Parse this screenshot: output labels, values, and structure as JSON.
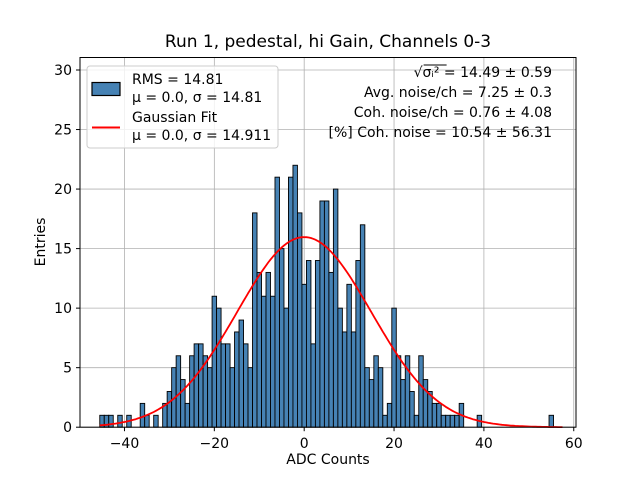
{
  "title": "Run 1, pedestal, hi Gain, Channels 0-3",
  "annotations": [
    "√σᵢ² = 14.49 ± 0.59",
    "Avg. noise/ch = 7.25 ± 0.3",
    "Coh. noise/ch = 0.76 ± 4.08",
    "[%] Coh. noise = 10.54 ± 56.31"
  ],
  "legend": {
    "entries": [
      {
        "swatch": "histogram-patch",
        "line1": "RMS = 14.81",
        "line2": "μ = 0.0, σ = 14.81"
      },
      {
        "swatch": "fit-line",
        "line1": "Gaussian Fit",
        "line2": "μ = 0.0, σ = 14.911"
      }
    ]
  },
  "colors": {
    "bar_fill": "#4682b4",
    "bar_edge": "#000000",
    "fit_line": "#ff0000",
    "grid": "#b0b0b0",
    "spine": "#000000",
    "legend_edge": "#cccccc",
    "background": "#ffffff"
  },
  "chart_data": {
    "type": "bar",
    "title": "Run 1, pedestal, hi Gain, Channels 0-3",
    "xlabel": "ADC Counts",
    "ylabel": "Entries",
    "xlim": [
      -49.9,
      60.5
    ],
    "ylim": [
      0,
      31.05
    ],
    "xticks": [
      -40,
      -20,
      0,
      20,
      40,
      60
    ],
    "yticks": [
      0,
      5,
      10,
      15,
      20,
      25,
      30
    ],
    "grid": true,
    "legend_position": "upper left",
    "histogram": {
      "bin_start": -45.5,
      "bin_width": 1.0,
      "counts": [
        1,
        1,
        1,
        0,
        1,
        0,
        1,
        0,
        0,
        2,
        1,
        0,
        1,
        0,
        2,
        3,
        5,
        6,
        4,
        2,
        6,
        7,
        7,
        6,
        5,
        11,
        10,
        7,
        7,
        5,
        8,
        9,
        7,
        5,
        18,
        13,
        11,
        13,
        11,
        21,
        15,
        10,
        21,
        22,
        18,
        12,
        14,
        7,
        14,
        19,
        19,
        13,
        20,
        10,
        8,
        12,
        8,
        14,
        17,
        5,
        4,
        6,
        5,
        1,
        2,
        10,
        6,
        4,
        6,
        3,
        1,
        6,
        4,
        3,
        2,
        2,
        1,
        1,
        1,
        1,
        2,
        0,
        0,
        0,
        1,
        0,
        0,
        0,
        0,
        0,
        0,
        0,
        0,
        0,
        0,
        0,
        0,
        0,
        0,
        0,
        1,
        0,
        0
      ]
    },
    "series": [
      {
        "name": "Gaussian Fit",
        "type": "line",
        "color": "#ff0000",
        "mu": 0.0,
        "sigma": 14.911,
        "amplitude": 15.97,
        "x_range": [
          -45.5,
          57.5
        ]
      }
    ]
  }
}
